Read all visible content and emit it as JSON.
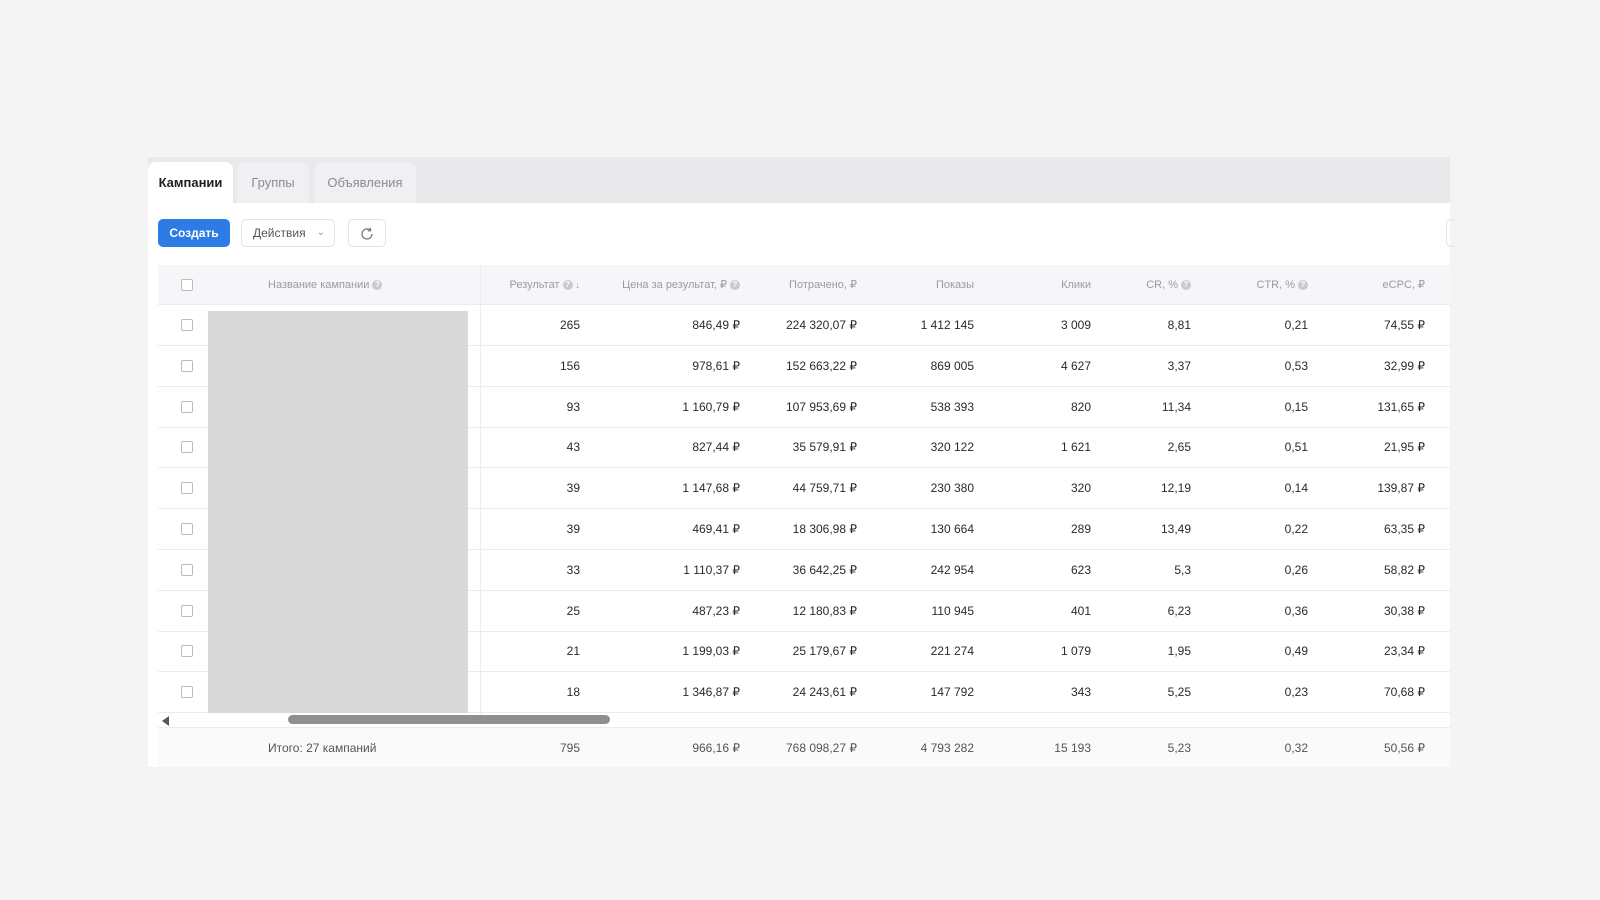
{
  "tabs": [
    {
      "label": "Кампании",
      "active": true
    },
    {
      "label": "Группы",
      "active": false
    },
    {
      "label": "Объявления",
      "active": false
    }
  ],
  "toolbar": {
    "create_label": "Создать",
    "actions_label": "Действия",
    "actions_icon": "chevron-down-icon",
    "refresh_icon": "refresh-icon",
    "accent_color": "#2d7be5"
  },
  "table": {
    "columns": {
      "name": "Название кампании",
      "result": "Результат",
      "cost_per_result": "Цена за результат, ₽",
      "spent": "Потрачено, ₽",
      "impressions": "Показы",
      "clicks": "Клики",
      "cr": "CR, %",
      "ctr": "CTR, %",
      "ecpc": "eCPC, ₽"
    },
    "rows": [
      {
        "result": "265",
        "cost_per_result": "846,49 ₽",
        "spent": "224 320,07 ₽",
        "impressions": "1 412 145",
        "clicks": "3 009",
        "cr": "8,81",
        "ctr": "0,21",
        "ecpc": "74,55 ₽"
      },
      {
        "result": "156",
        "cost_per_result": "978,61 ₽",
        "spent": "152 663,22 ₽",
        "impressions": "869 005",
        "clicks": "4 627",
        "cr": "3,37",
        "ctr": "0,53",
        "ecpc": "32,99 ₽"
      },
      {
        "result": "93",
        "cost_per_result": "1 160,79 ₽",
        "spent": "107 953,69 ₽",
        "impressions": "538 393",
        "clicks": "820",
        "cr": "11,34",
        "ctr": "0,15",
        "ecpc": "131,65 ₽"
      },
      {
        "result": "43",
        "cost_per_result": "827,44 ₽",
        "spent": "35 579,91 ₽",
        "impressions": "320 122",
        "clicks": "1 621",
        "cr": "2,65",
        "ctr": "0,51",
        "ecpc": "21,95 ₽"
      },
      {
        "result": "39",
        "cost_per_result": "1 147,68 ₽",
        "spent": "44 759,71 ₽",
        "impressions": "230 380",
        "clicks": "320",
        "cr": "12,19",
        "ctr": "0,14",
        "ecpc": "139,87 ₽"
      },
      {
        "result": "39",
        "cost_per_result": "469,41 ₽",
        "spent": "18 306,98 ₽",
        "impressions": "130 664",
        "clicks": "289",
        "cr": "13,49",
        "ctr": "0,22",
        "ecpc": "63,35 ₽"
      },
      {
        "result": "33",
        "cost_per_result": "1 110,37 ₽",
        "spent": "36 642,25 ₽",
        "impressions": "242 954",
        "clicks": "623",
        "cr": "5,3",
        "ctr": "0,26",
        "ecpc": "58,82 ₽"
      },
      {
        "result": "25",
        "cost_per_result": "487,23 ₽",
        "spent": "12 180,83 ₽",
        "impressions": "110 945",
        "clicks": "401",
        "cr": "6,23",
        "ctr": "0,36",
        "ecpc": "30,38 ₽"
      },
      {
        "result": "21",
        "cost_per_result": "1 199,03 ₽",
        "spent": "25 179,67 ₽",
        "impressions": "221 274",
        "clicks": "1 079",
        "cr": "1,95",
        "ctr": "0,49",
        "ecpc": "23,34 ₽"
      },
      {
        "result": "18",
        "cost_per_result": "1 346,87 ₽",
        "spent": "24 243,61 ₽",
        "impressions": "147 792",
        "clicks": "343",
        "cr": "5,25",
        "ctr": "0,23",
        "ecpc": "70,68 ₽"
      }
    ],
    "totals": {
      "label": "Итого: 27 кампаний",
      "result": "795",
      "cost_per_result": "966,16 ₽",
      "spent": "768 098,27 ₽",
      "impressions": "4 793 282",
      "clicks": "15 193",
      "cr": "5,23",
      "ctr": "0,32",
      "ecpc": "50,56 ₽"
    }
  }
}
